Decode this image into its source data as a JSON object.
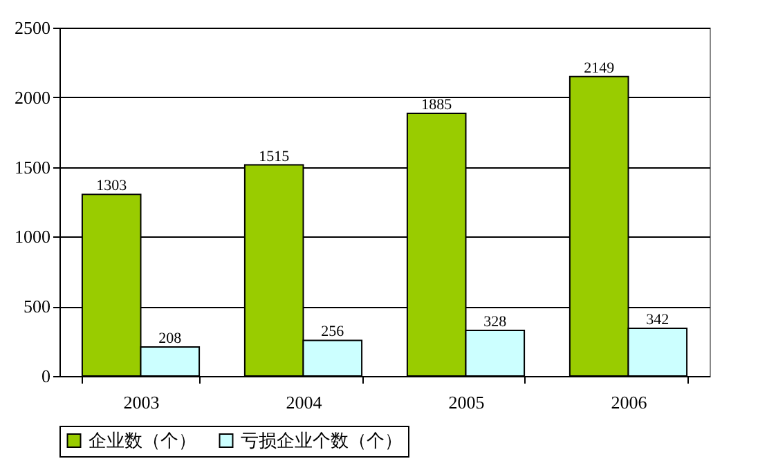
{
  "chart_data": {
    "type": "bar",
    "categories": [
      "2003",
      "2004",
      "2005",
      "2006"
    ],
    "series": [
      {
        "name": "企业数（个）",
        "color": "#99cc00",
        "values": [
          1303,
          1515,
          1885,
          2149
        ]
      },
      {
        "name": "亏损企业个数（个）",
        "color": "#ccffff",
        "values": [
          208,
          256,
          328,
          342
        ]
      }
    ],
    "ylim": [
      0,
      2500
    ],
    "yticks": [
      0,
      500,
      1000,
      1500,
      2000,
      2500
    ],
    "grid": "y",
    "legend": "bottom",
    "data_labels": true
  }
}
